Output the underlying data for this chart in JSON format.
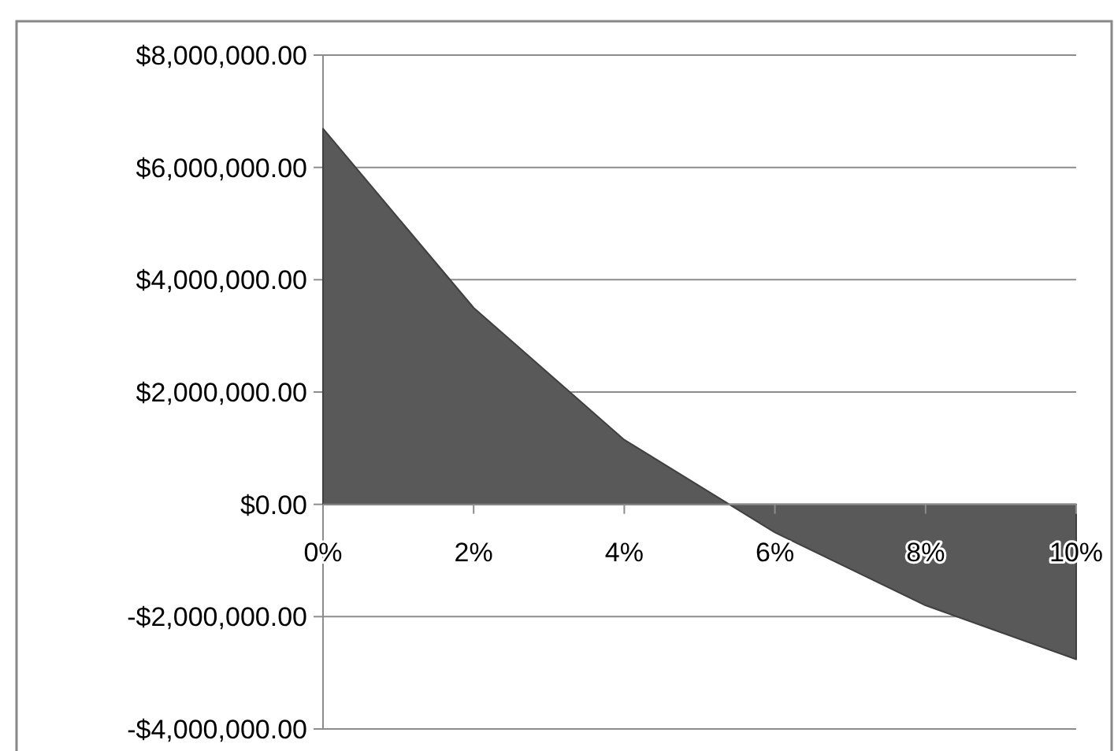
{
  "chart_data": {
    "type": "area",
    "x": [
      0,
      2,
      4,
      6,
      8,
      10
    ],
    "series": [
      {
        "color": "#595959",
        "values": [
          6690000,
          3500000,
          1150000,
          -500000,
          -1800000,
          -2760000
        ]
      }
    ],
    "xlim": [
      0,
      10
    ],
    "xticks": [
      {
        "value": 0,
        "label": "0%"
      },
      {
        "value": 2,
        "label": "2%"
      },
      {
        "value": 4,
        "label": "4%"
      },
      {
        "value": 6,
        "label": "6%"
      },
      {
        "value": 8,
        "label": "8%"
      },
      {
        "value": 10,
        "label": "10%"
      }
    ],
    "ylim": [
      -4000000,
      8000000
    ],
    "yticks": [
      {
        "value": -4000000,
        "label": "-$4,000,000.00"
      },
      {
        "value": -2000000,
        "label": "-$2,000,000.00"
      },
      {
        "value": 0,
        "label": "$0.00"
      },
      {
        "value": 2000000,
        "label": "$2,000,000.00"
      },
      {
        "value": 4000000,
        "label": "$4,000,000.00"
      },
      {
        "value": 6000000,
        "label": "$6,000,000.00"
      },
      {
        "value": 8000000,
        "label": "$8,000,000.00"
      }
    ],
    "grid": "y"
  }
}
